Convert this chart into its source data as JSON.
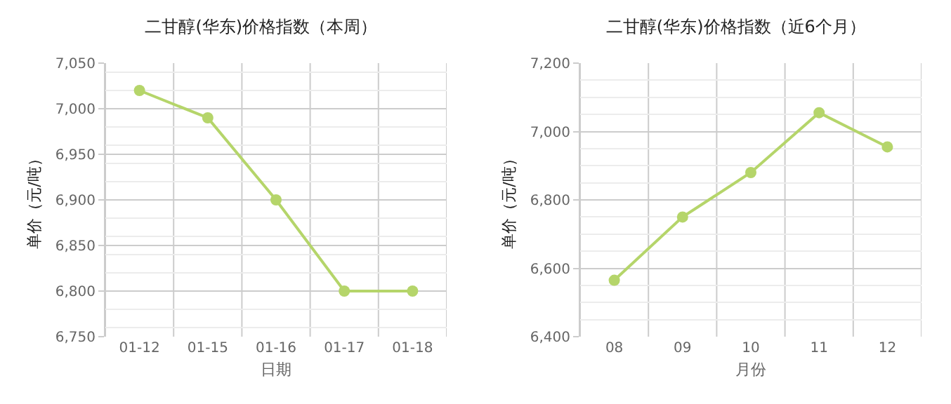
{
  "chart_data": [
    {
      "type": "line",
      "title": "二甘醇(华东)价格指数（本周）",
      "xlabel": "日期",
      "ylabel": "单价（元/吨）",
      "categories": [
        "01-12",
        "01-15",
        "01-16",
        "01-17",
        "01-18"
      ],
      "series": [
        {
          "color": "#b5d56a",
          "values": [
            7020,
            6990,
            6900,
            6800,
            6800
          ]
        }
      ],
      "ylim": [
        6750,
        7050
      ],
      "yticks": [
        {
          "value": 6750,
          "label": "6,750"
        },
        {
          "value": 6800,
          "label": "6,800"
        },
        {
          "value": 6850,
          "label": "6,850"
        },
        {
          "value": 6900,
          "label": "6,900"
        },
        {
          "value": 6950,
          "label": "6,950"
        },
        {
          "value": 7000,
          "label": "7,000"
        },
        {
          "value": 7050,
          "label": "7,050"
        }
      ],
      "grid": true,
      "marker": "circle",
      "legend": false
    },
    {
      "type": "line",
      "title": "二甘醇(华东)价格指数（近6个月）",
      "xlabel": "月份",
      "ylabel": "单价（元/吨）",
      "categories": [
        "08",
        "09",
        "10",
        "11",
        "12"
      ],
      "series": [
        {
          "color": "#b5d56a",
          "values": [
            6565,
            6750,
            6880,
            7055,
            6955
          ]
        }
      ],
      "ylim": [
        6400,
        7200
      ],
      "yticks": [
        {
          "value": 6400,
          "label": "6,400"
        },
        {
          "value": 6600,
          "label": "6,600"
        },
        {
          "value": 6800,
          "label": "6,800"
        },
        {
          "value": 7000,
          "label": "7,000"
        },
        {
          "value": 7200,
          "label": "7,200"
        }
      ],
      "grid": true,
      "marker": "circle",
      "legend": false
    }
  ]
}
